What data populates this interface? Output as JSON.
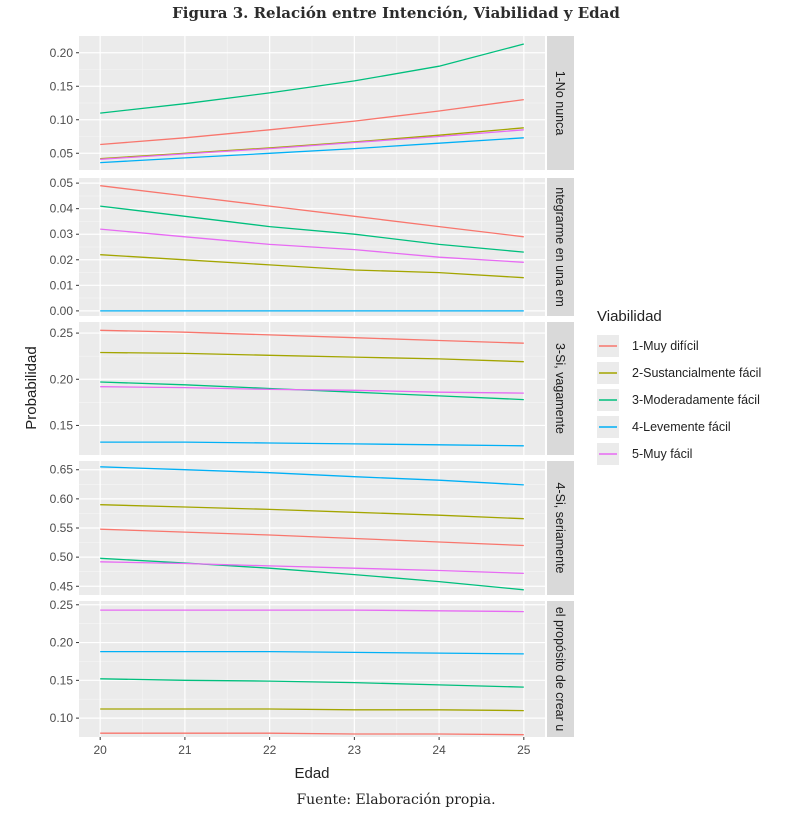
{
  "figure": {
    "title": "Figura 3. Relación entre Intención, Viabilidad y Edad",
    "caption": "Fuente: Elaboración propia."
  },
  "chart_data": {
    "type": "line",
    "xlabel": "Edad",
    "ylabel": "Probabilidad",
    "x_ticks": [
      20,
      21,
      22,
      23,
      24,
      25
    ],
    "xlim": [
      19.75,
      25.25
    ],
    "grid": true,
    "legend_title": "Viabilidad",
    "legend_placement": "right",
    "series_styles": [
      {
        "name": "1-Muy difícil",
        "color": "#F8766D"
      },
      {
        "name": "2-Sustancialmente fácil",
        "color": "#A3A500"
      },
      {
        "name": "3-Moderadamente fácil",
        "color": "#00BF7D"
      },
      {
        "name": "4-Levemente fácil",
        "color": "#00B0F6"
      },
      {
        "name": "5-Muy fácil",
        "color": "#E76BF3"
      }
    ],
    "panels": [
      {
        "strip": "1-No nunca",
        "ylim": [
          0.025,
          0.225
        ],
        "y_ticks": [
          0.05,
          0.1,
          0.15,
          0.2
        ],
        "y_tick_labels": [
          "0.05",
          "0.10",
          "0.15",
          "0.20"
        ],
        "series": [
          {
            "name": "1-Muy difícil",
            "x": [
              20,
              21,
              22,
              23,
              24,
              25
            ],
            "values": [
              0.063,
              0.073,
              0.085,
              0.098,
              0.113,
              0.13
            ]
          },
          {
            "name": "2-Sustancialmente fácil",
            "x": [
              20,
              21,
              22,
              23,
              24,
              25
            ],
            "values": [
              0.042,
              0.05,
              0.058,
              0.067,
              0.077,
              0.088
            ]
          },
          {
            "name": "3-Moderadamente fácil",
            "x": [
              20,
              21,
              22,
              23,
              24,
              25
            ],
            "values": [
              0.11,
              0.124,
              0.14,
              0.158,
              0.18,
              0.213
            ]
          },
          {
            "name": "4-Levemente fácil",
            "x": [
              20,
              21,
              22,
              23,
              24,
              25
            ],
            "values": [
              0.036,
              0.043,
              0.05,
              0.057,
              0.065,
              0.073
            ]
          },
          {
            "name": "5-Muy fácil",
            "x": [
              20,
              21,
              22,
              23,
              24,
              25
            ],
            "values": [
              0.041,
              0.049,
              0.057,
              0.066,
              0.075,
              0.085
            ]
          }
        ]
      },
      {
        "strip": "ntegrarme en una em",
        "ylim": [
          -0.002,
          0.052
        ],
        "y_ticks": [
          0.0,
          0.01,
          0.02,
          0.03,
          0.04,
          0.05
        ],
        "y_tick_labels": [
          "0.00",
          "0.01",
          "0.02",
          "0.03",
          "0.04",
          "0.05"
        ],
        "series": [
          {
            "name": "1-Muy difícil",
            "x": [
              20,
              21,
              22,
              23,
              24,
              25
            ],
            "values": [
              0.049,
              0.045,
              0.041,
              0.037,
              0.033,
              0.029
            ]
          },
          {
            "name": "2-Sustancialmente fácil",
            "x": [
              20,
              21,
              22,
              23,
              24,
              25
            ],
            "values": [
              0.022,
              0.02,
              0.018,
              0.016,
              0.015,
              0.013
            ]
          },
          {
            "name": "3-Moderadamente fácil",
            "x": [
              20,
              21,
              22,
              23,
              24,
              25
            ],
            "values": [
              0.041,
              0.037,
              0.033,
              0.03,
              0.026,
              0.023
            ]
          },
          {
            "name": "4-Levemente fácil",
            "x": [
              20,
              21,
              22,
              23,
              24,
              25
            ],
            "values": [
              0.0,
              0.0,
              0.0,
              0.0,
              0.0,
              0.0
            ]
          },
          {
            "name": "5-Muy fácil",
            "x": [
              20,
              21,
              22,
              23,
              24,
              25
            ],
            "values": [
              0.032,
              0.029,
              0.026,
              0.024,
              0.021,
              0.019
            ]
          }
        ]
      },
      {
        "strip": "3-Si, vagamente",
        "ylim": [
          0.118,
          0.262
        ],
        "y_ticks": [
          0.15,
          0.2,
          0.25
        ],
        "y_tick_labels": [
          "0.15",
          "0.20",
          "0.25"
        ],
        "series": [
          {
            "name": "1-Muy difícil",
            "x": [
              20,
              21,
              22,
              23,
              24,
              25
            ],
            "values": [
              0.253,
              0.251,
              0.248,
              0.245,
              0.242,
              0.239
            ]
          },
          {
            "name": "2-Sustancialmente fácil",
            "x": [
              20,
              21,
              22,
              23,
              24,
              25
            ],
            "values": [
              0.229,
              0.228,
              0.226,
              0.224,
              0.222,
              0.219
            ]
          },
          {
            "name": "3-Moderadamente fácil",
            "x": [
              20,
              21,
              22,
              23,
              24,
              25
            ],
            "values": [
              0.197,
              0.194,
              0.19,
              0.186,
              0.182,
              0.178
            ]
          },
          {
            "name": "4-Levemente fácil",
            "x": [
              20,
              21,
              22,
              23,
              24,
              25
            ],
            "values": [
              0.132,
              0.132,
              0.131,
              0.13,
              0.129,
              0.128
            ]
          },
          {
            "name": "5-Muy fácil",
            "x": [
              20,
              21,
              22,
              23,
              24,
              25
            ],
            "values": [
              0.192,
              0.191,
              0.189,
              0.188,
              0.186,
              0.185
            ]
          }
        ]
      },
      {
        "strip": "4-Si, seriamente",
        "ylim": [
          0.435,
          0.665
        ],
        "y_ticks": [
          0.45,
          0.5,
          0.55,
          0.6,
          0.65
        ],
        "y_tick_labels": [
          "0.45",
          "0.50",
          "0.55",
          "0.60",
          "0.65"
        ],
        "series": [
          {
            "name": "1-Muy difícil",
            "x": [
              20,
              21,
              22,
              23,
              24,
              25
            ],
            "values": [
              0.548,
              0.543,
              0.538,
              0.532,
              0.526,
              0.52
            ]
          },
          {
            "name": "2-Sustancialmente fácil",
            "x": [
              20,
              21,
              22,
              23,
              24,
              25
            ],
            "values": [
              0.59,
              0.586,
              0.582,
              0.577,
              0.572,
              0.566
            ]
          },
          {
            "name": "3-Moderadamente fácil",
            "x": [
              20,
              21,
              22,
              23,
              24,
              25
            ],
            "values": [
              0.498,
              0.49,
              0.481,
              0.47,
              0.458,
              0.444
            ]
          },
          {
            "name": "4-Levemente fácil",
            "x": [
              20,
              21,
              22,
              23,
              24,
              25
            ],
            "values": [
              0.655,
              0.65,
              0.645,
              0.638,
              0.632,
              0.624
            ]
          },
          {
            "name": "5-Muy fácil",
            "x": [
              20,
              21,
              22,
              23,
              24,
              25
            ],
            "values": [
              0.492,
              0.489,
              0.485,
              0.481,
              0.477,
              0.472
            ]
          }
        ]
      },
      {
        "strip": "el propósito de crear u",
        "ylim": [
          0.075,
          0.255
        ],
        "y_ticks": [
          0.1,
          0.15,
          0.2,
          0.25
        ],
        "y_tick_labels": [
          "0.10",
          "0.15",
          "0.20",
          "0.25"
        ],
        "series": [
          {
            "name": "1-Muy difícil",
            "x": [
              20,
              21,
              22,
              23,
              24,
              25
            ],
            "values": [
              0.08,
              0.08,
              0.08,
              0.079,
              0.079,
              0.078
            ]
          },
          {
            "name": "2-Sustancialmente fácil",
            "x": [
              20,
              21,
              22,
              23,
              24,
              25
            ],
            "values": [
              0.112,
              0.112,
              0.112,
              0.111,
              0.111,
              0.11
            ]
          },
          {
            "name": "3-Moderadamente fácil",
            "x": [
              20,
              21,
              22,
              23,
              24,
              25
            ],
            "values": [
              0.152,
              0.15,
              0.149,
              0.147,
              0.144,
              0.141
            ]
          },
          {
            "name": "4-Levemente fácil",
            "x": [
              20,
              21,
              22,
              23,
              24,
              25
            ],
            "values": [
              0.188,
              0.188,
              0.188,
              0.187,
              0.186,
              0.185
            ]
          },
          {
            "name": "5-Muy fácil",
            "x": [
              20,
              21,
              22,
              23,
              24,
              25
            ],
            "values": [
              0.243,
              0.243,
              0.243,
              0.243,
              0.242,
              0.241
            ]
          }
        ]
      }
    ]
  }
}
